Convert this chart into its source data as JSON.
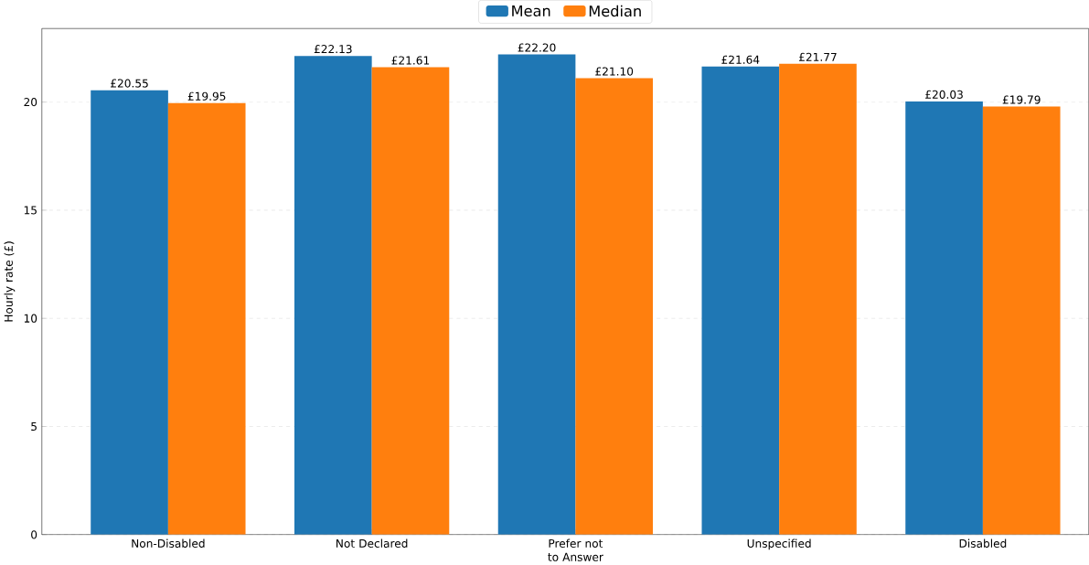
{
  "chart_data": {
    "type": "bar",
    "ylabel": "Hourly rate (£)",
    "categories": [
      "Non-Disabled",
      "Not Declared",
      "Prefer not to Answer",
      "Unspecified",
      "Disabled"
    ],
    "series": [
      {
        "name": "Mean",
        "color": "#1f77b4",
        "values": [
          20.55,
          22.13,
          22.2,
          21.64,
          20.03
        ],
        "value_labels": [
          "£20.55",
          "£22.13",
          "£22.20",
          "£21.64",
          "£20.03"
        ]
      },
      {
        "name": "Median",
        "color": "#ff7f0e",
        "values": [
          19.95,
          21.61,
          21.1,
          21.77,
          19.79
        ],
        "value_labels": [
          "£19.95",
          "£21.61",
          "£21.10",
          "£21.77",
          "£19.79"
        ]
      }
    ],
    "ylim": [
      0,
      23.4
    ],
    "yticks": [
      0,
      5,
      10,
      15,
      20
    ],
    "grid": "y",
    "legend": "top"
  }
}
